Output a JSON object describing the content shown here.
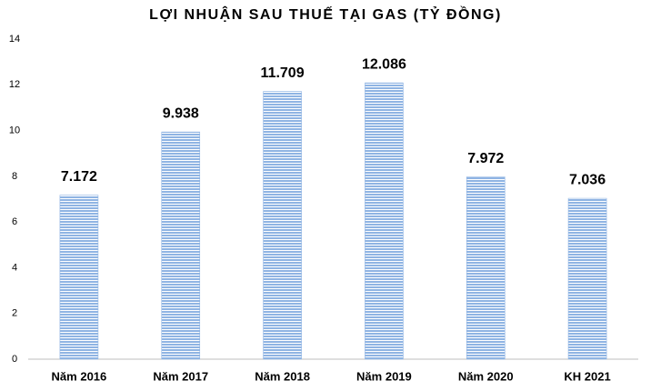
{
  "chart_data": {
    "type": "bar",
    "title": "LỢI NHUẬN SAU THUẾ TẠI GAS (TỶ ĐỒNG)",
    "categories": [
      "Năm 2016",
      "Năm 2017",
      "Năm 2018",
      "Năm 2019",
      "Năm 2020",
      "KH 2021"
    ],
    "values": [
      7.172,
      9.938,
      11.709,
      12.086,
      7.972,
      7.036
    ],
    "color": "#8fb4e3",
    "ylim": [
      0,
      14
    ],
    "yticks": [
      0,
      2,
      4,
      6,
      8,
      10,
      12,
      14
    ],
    "grid": false
  }
}
